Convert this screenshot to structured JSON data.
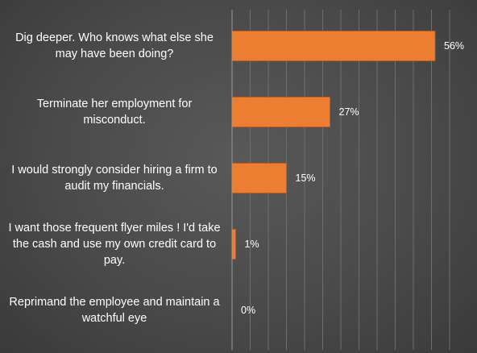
{
  "chart_data": {
    "type": "bar",
    "orientation": "horizontal",
    "categories": [
      "Dig deeper. Who knows what else she may have been doing?",
      "Terminate her employment for misconduct.",
      "I would strongly consider hiring a firm to audit my financials.",
      "I want those frequent flyer miles ! I'd take the cash and use my own credit card to pay.",
      "Reprimand the employee and maintain a watchful eye"
    ],
    "values": [
      56,
      27,
      15,
      1,
      0
    ],
    "value_labels": [
      "56%",
      "27%",
      "15%",
      "1%",
      "0%"
    ],
    "xlim": [
      0,
      60
    ],
    "grid": true,
    "bar_color": "#ed7d31",
    "title": "",
    "xlabel": "",
    "ylabel": ""
  }
}
